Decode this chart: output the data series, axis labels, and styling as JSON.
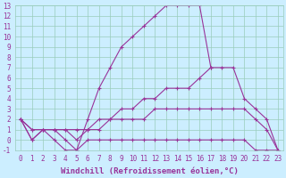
{
  "line_color": "#993399",
  "bg_color": "#cceeff",
  "marker": "+",
  "xlabel": "Windchill (Refroidissement éolien,°C)",
  "xlabel_color": "#993399",
  "xlim": [
    -0.5,
    23.5
  ],
  "ylim": [
    -1,
    13
  ],
  "xticks": [
    0,
    1,
    2,
    3,
    4,
    5,
    6,
    7,
    8,
    9,
    10,
    11,
    12,
    13,
    14,
    15,
    16,
    17,
    18,
    19,
    20,
    21,
    22,
    23
  ],
  "yticks": [
    -1,
    0,
    1,
    2,
    3,
    4,
    5,
    6,
    7,
    8,
    9,
    10,
    11,
    12,
    13
  ],
  "curves": [
    {
      "x": [
        0,
        1,
        2,
        3,
        4,
        5,
        6,
        7,
        8,
        9,
        10,
        11,
        12,
        13,
        14,
        15,
        16,
        17
      ],
      "y": [
        2,
        0,
        1,
        1,
        0,
        -1,
        2,
        5,
        7,
        9,
        10,
        11,
        12,
        13,
        13,
        13,
        13,
        7
      ]
    },
    {
      "x": [
        0,
        1,
        2,
        3,
        4,
        5,
        6,
        7,
        8,
        9,
        10,
        11,
        12,
        13,
        14,
        15,
        16,
        17,
        18,
        19,
        20,
        21,
        22,
        23
      ],
      "y": [
        2,
        1,
        1,
        1,
        1,
        1,
        1,
        2,
        2,
        3,
        3,
        4,
        4,
        5,
        5,
        5,
        6,
        7,
        7,
        7,
        4,
        3,
        2,
        -1
      ]
    },
    {
      "x": [
        0,
        1,
        2,
        3,
        4,
        5,
        6,
        7,
        8,
        9,
        10,
        11,
        12,
        13,
        14,
        15,
        16,
        17,
        18,
        19,
        20,
        21,
        22,
        23
      ],
      "y": [
        2,
        1,
        1,
        1,
        1,
        0,
        1,
        1,
        2,
        2,
        2,
        2,
        3,
        3,
        3,
        3,
        3,
        3,
        3,
        3,
        3,
        2,
        1,
        -1
      ]
    },
    {
      "x": [
        0,
        1,
        2,
        3,
        4,
        5,
        6,
        7,
        8,
        9,
        10,
        11,
        12,
        13,
        14,
        15,
        16,
        17,
        18,
        19,
        20,
        21,
        22,
        23
      ],
      "y": [
        2,
        0,
        1,
        0,
        -1,
        -1,
        0,
        0,
        0,
        0,
        0,
        0,
        0,
        0,
        0,
        0,
        0,
        0,
        0,
        0,
        0,
        -1,
        -1,
        -1
      ]
    }
  ],
  "grid_color": "#99ccbb",
  "tick_fontsize": 5.5,
  "xlabel_fontsize": 6.5
}
